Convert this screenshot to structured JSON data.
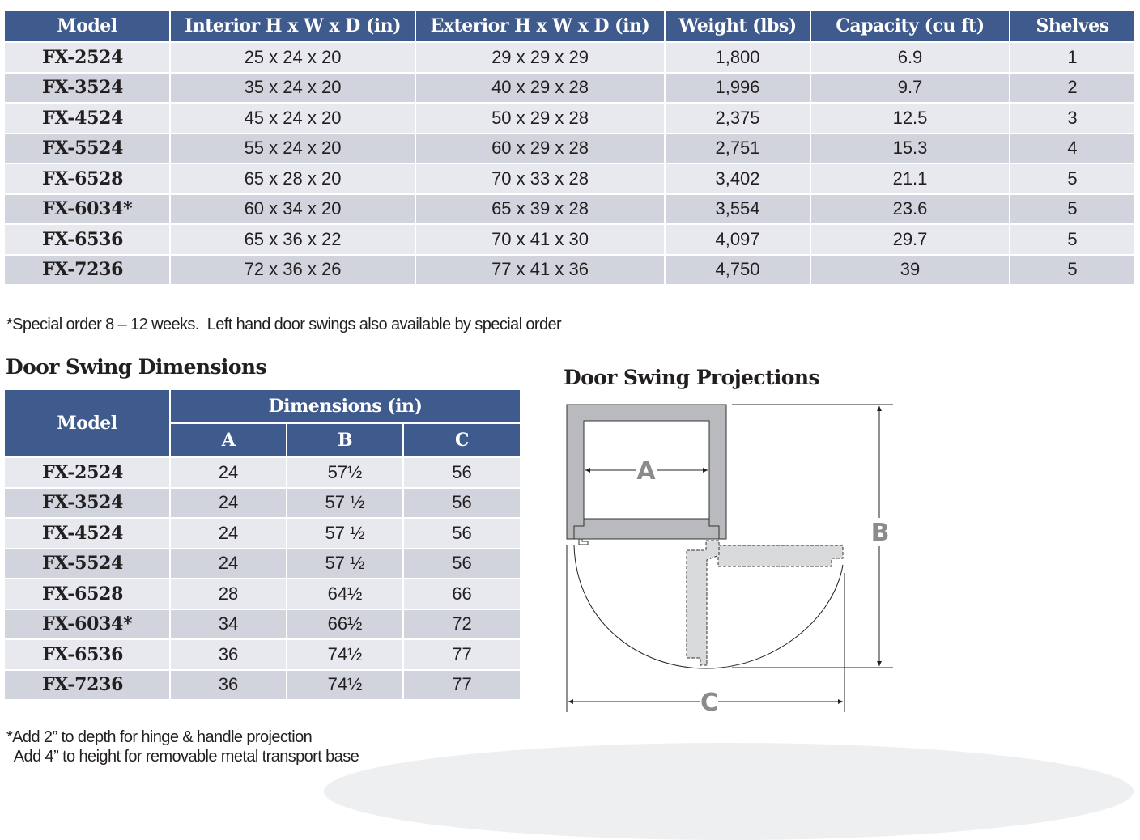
{
  "specs_table": {
    "headers": [
      "Model",
      "Interior H x W x D (in)",
      "Exterior H x W x D (in)",
      "Weight (lbs)",
      "Capacity (cu ft)",
      "Shelves"
    ],
    "rows": [
      [
        "FX-2524",
        "25 x 24 x 20",
        "29 x 29 x 29",
        "1,800",
        "6.9",
        "1"
      ],
      [
        "FX-3524",
        "35 x 24 x 20",
        "40 x 29 x 28",
        "1,996",
        "9.7",
        "2"
      ],
      [
        "FX-4524",
        "45 x 24 x 20",
        "50 x 29 x 28",
        "2,375",
        "12.5",
        "3"
      ],
      [
        "FX-5524",
        "55 x 24 x 20",
        "60 x 29 x 28",
        "2,751",
        "15.3",
        "4"
      ],
      [
        "FX-6528",
        "65 x 28 x 20",
        "70 x 33 x 28",
        "3,402",
        "21.1",
        "5"
      ],
      [
        "FX-6034*",
        "60 x 34 x 20",
        "65 x 39 x 28",
        "3,554",
        "23.6",
        "5"
      ],
      [
        "FX-6536",
        "65 x 36 x 22",
        "70 x 41 x 30",
        "4,097",
        "29.7",
        "5"
      ],
      [
        "FX-7236",
        "72 x 36 x 26",
        "77 x 41 x 36",
        "4,750",
        "39",
        "5"
      ]
    ]
  },
  "specs_note": "*Special order 8 – 12 weeks.  Left hand door swings also available by special order",
  "door_dimensions": {
    "title": "Door Swing Dimensions",
    "model_header": "Model",
    "group_header": "Dimensions (in)",
    "sub_headers": [
      "A",
      "B",
      "C"
    ],
    "rows": [
      [
        "FX-2524",
        "24",
        "57½",
        "56"
      ],
      [
        "FX-3524",
        "24",
        "57 ½",
        "56"
      ],
      [
        "FX-4524",
        "24",
        "57 ½",
        "56"
      ],
      [
        "FX-5524",
        "24",
        "57 ½",
        "56"
      ],
      [
        "FX-6528",
        "28",
        "64½",
        "66"
      ],
      [
        "FX-6034*",
        "34",
        "66½",
        "72"
      ],
      [
        "FX-6536",
        "36",
        "74½",
        "77"
      ],
      [
        "FX-7236",
        "36",
        "74½",
        "77"
      ]
    ],
    "notes": [
      "*Add 2” to depth for hinge & handle projection",
      "  Add 4” to height for removable metal transport base"
    ]
  },
  "projections": {
    "title": "Door Swing Projections",
    "labels": {
      "a": "A",
      "b": "B",
      "c": "C"
    }
  },
  "colors": {
    "header": "#3f5a8c",
    "row_light": "#e8e9ee",
    "row_dark": "#d1d4dc",
    "cabinet": "#b9babd",
    "door": "#d9dadc",
    "dim_label": "#8a8b8d"
  }
}
